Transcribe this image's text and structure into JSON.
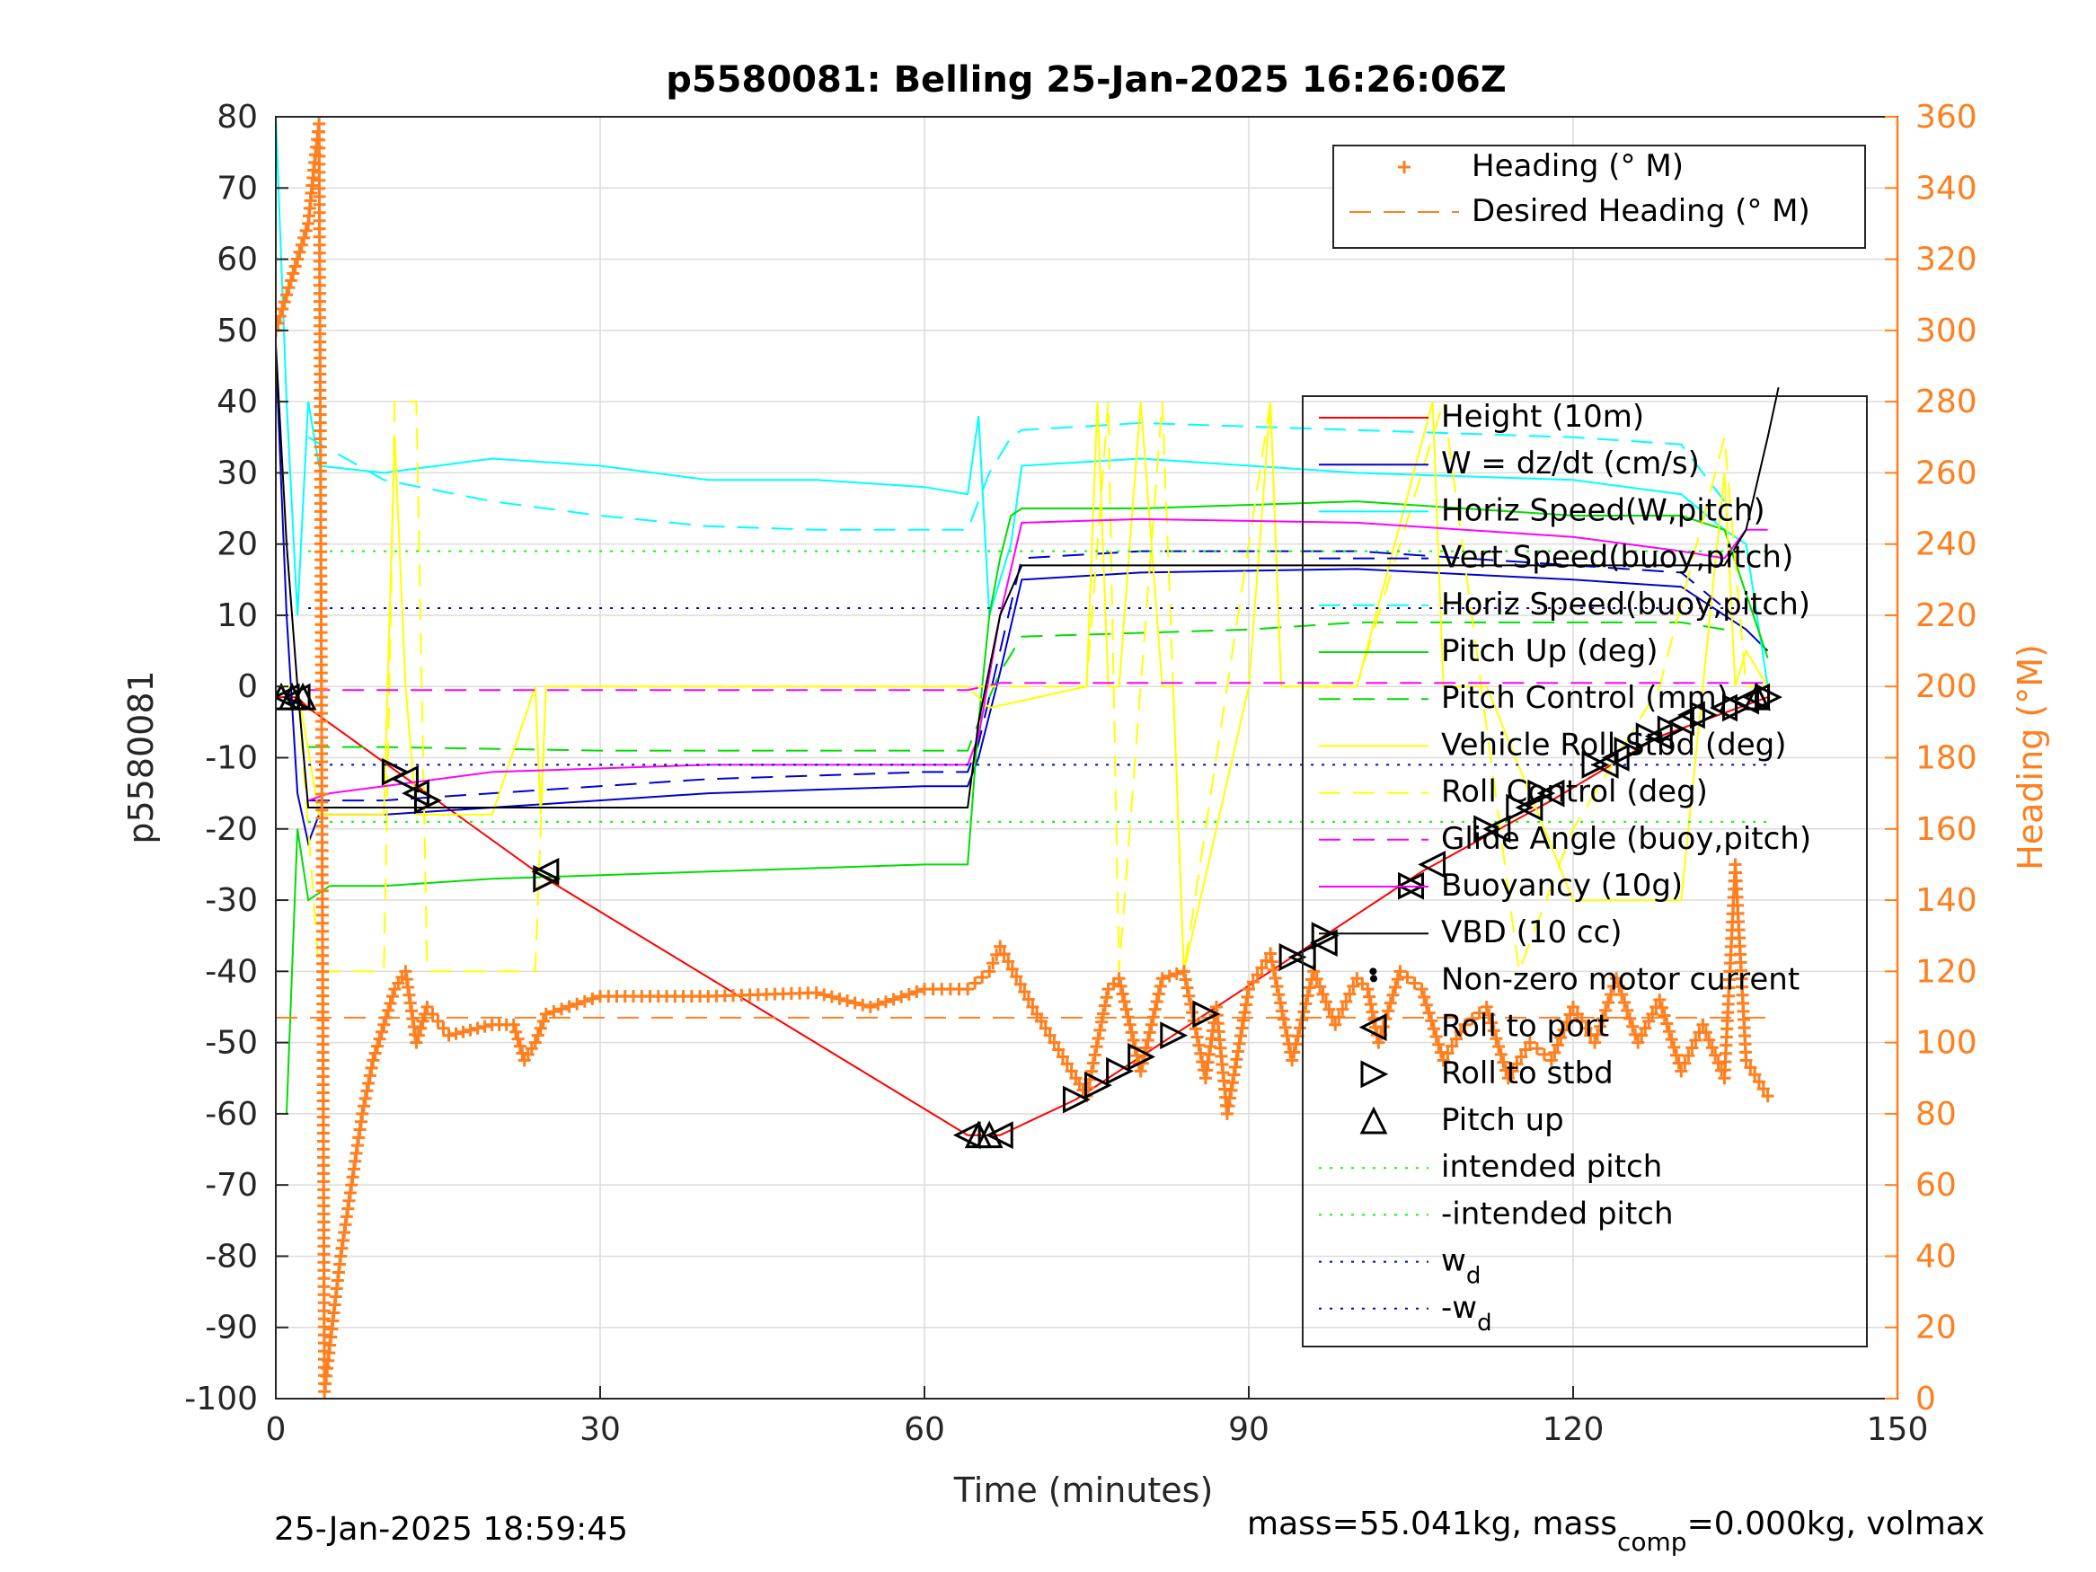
{
  "chart_data": {
    "type": "line",
    "title": "p5580081: Belling 25-Jan-2025 16:26:06Z",
    "xlabel": "Time (minutes)",
    "ylabel_left": "p5580081",
    "ylabel_right": "Heading (°M)",
    "xlim": [
      0,
      150
    ],
    "ylim_left": [
      -100,
      80
    ],
    "ylim_right": [
      0,
      360
    ],
    "x_ticks": [
      0,
      30,
      60,
      90,
      120,
      150
    ],
    "y_ticks_left": [
      -100,
      -90,
      -80,
      -70,
      -60,
      -50,
      -40,
      -30,
      -20,
      -10,
      0,
      10,
      20,
      30,
      40,
      50,
      60,
      70,
      80
    ],
    "y_ticks_right": [
      0,
      20,
      40,
      60,
      80,
      100,
      120,
      140,
      160,
      180,
      200,
      220,
      240,
      260,
      280,
      300,
      320,
      340,
      360
    ],
    "grid": true,
    "colors": {
      "heading": "#ff7f1f",
      "right_axis": "#ff7f1f"
    },
    "heading_legend": [
      {
        "name": "Heading (° M)",
        "style": "plus",
        "color": "#ff7f1f"
      },
      {
        "name": "Desired Heading (° M)",
        "style": "dash",
        "color": "#ff7f1f"
      }
    ],
    "main_legend": [
      {
        "name": "Height (10m)",
        "style": "solid",
        "color": "#ff0000"
      },
      {
        "name": "W = dz/dt (cm/s)",
        "style": "solid",
        "color": "#0000cc"
      },
      {
        "name": "Horiz Speed(W,pitch)",
        "style": "solid",
        "color": "#00ffff"
      },
      {
        "name": "Vert Speed(buoy,pitch)",
        "style": "dash",
        "color": "#0000cc"
      },
      {
        "name": "Horiz Speed(buoy,pitch)",
        "style": "dash",
        "color": "#00ffff"
      },
      {
        "name": "Pitch Up (deg)",
        "style": "solid",
        "color": "#00dd00"
      },
      {
        "name": "Pitch Control (mm)",
        "style": "dash",
        "color": "#00dd00"
      },
      {
        "name": "Vehicle Roll Stbd (deg)",
        "style": "solid",
        "color": "#ffff00"
      },
      {
        "name": "Roll Control (deg)",
        "style": "dash",
        "color": "#ffff00"
      },
      {
        "name": "Glide Angle (buoy,pitch)",
        "style": "dash",
        "color": "#ff00ff"
      },
      {
        "name": "Buoyancy (10g)",
        "style": "solid",
        "color": "#ff00ff"
      },
      {
        "name": "VBD (10 cc)",
        "style": "solid",
        "color": "#000000"
      },
      {
        "name": "Non-zero motor current",
        "style": "dot",
        "color": "#000000"
      },
      {
        "name": "Roll to port",
        "style": "tri-left",
        "color": "#000000"
      },
      {
        "name": "Roll to stbd",
        "style": "tri-right",
        "color": "#000000"
      },
      {
        "name": "Pitch up",
        "style": "tri-up",
        "color": "#000000"
      },
      {
        "name": "intended pitch",
        "style": "dotted",
        "color": "#00ff00"
      },
      {
        "name": "-intended pitch",
        "style": "dotted",
        "color": "#00ff00"
      },
      {
        "name": "w",
        "sub": "d",
        "style": "dotted",
        "color": "#0000cc"
      },
      {
        "name": "-w",
        "sub": "d",
        "style": "dotted",
        "color": "#0000cc"
      }
    ],
    "series": [
      {
        "name": "Height (10m)",
        "axis": "left",
        "x": [
          0,
          2,
          3,
          25,
          64,
          67,
          74,
          86,
          97,
          106,
          118,
          128,
          138
        ],
        "y": [
          -1.5,
          -1.5,
          -3,
          -27,
          -63,
          -63,
          -58,
          -46,
          -35,
          -26,
          -16,
          -7,
          -1.5
        ]
      },
      {
        "name": "W = dz/dt (cm/s)",
        "axis": "left",
        "x": [
          0,
          1,
          2,
          3,
          4,
          10,
          20,
          40,
          60,
          64,
          65,
          67,
          69,
          80,
          100,
          120,
          130,
          134,
          136,
          138
        ],
        "y": [
          47,
          10,
          -15,
          -22,
          -18,
          -18,
          -17,
          -15,
          -14,
          -14,
          -10,
          2,
          15,
          16,
          16.5,
          15,
          14,
          10,
          8,
          5
        ]
      },
      {
        "name": "Horiz Speed(W,pitch)",
        "axis": "left",
        "x": [
          0,
          1,
          2,
          3,
          4,
          10,
          20,
          30,
          40,
          50,
          60,
          64,
          65,
          66,
          67,
          68,
          69,
          80,
          100,
          120,
          130,
          134,
          136,
          138
        ],
        "y": [
          80,
          40,
          10,
          40,
          31,
          30,
          32,
          31,
          29,
          29,
          28,
          27,
          38,
          10,
          15,
          20,
          31,
          32,
          30,
          29,
          27,
          22,
          20,
          0
        ]
      },
      {
        "name": "Vert Speed(buoy,pitch)",
        "axis": "left",
        "x": [
          3,
          10,
          20,
          40,
          60,
          64,
          65,
          67,
          69,
          80,
          100,
          120,
          130,
          134
        ],
        "y": [
          -16,
          -16,
          -15,
          -13,
          -12,
          -12,
          -8,
          5,
          18,
          19,
          19,
          17,
          16,
          11
        ]
      },
      {
        "name": "Horiz Speed(buoy,pitch)",
        "axis": "left",
        "x": [
          3,
          10,
          20,
          30,
          40,
          50,
          60,
          64,
          66,
          68,
          69,
          80,
          100,
          120,
          130,
          134
        ],
        "y": [
          35,
          29,
          26,
          24,
          22.5,
          22,
          22,
          22,
          30,
          35,
          36,
          37,
          36,
          35,
          34,
          26
        ]
      },
      {
        "name": "Pitch Up (deg)",
        "axis": "left",
        "x": [
          1,
          2,
          3,
          5,
          10,
          20,
          40,
          60,
          64,
          65,
          66,
          67,
          68,
          69,
          80,
          100,
          120,
          130,
          134,
          138
        ],
        "y": [
          -60,
          -20,
          -30,
          -28,
          -28,
          -27,
          -26,
          -25,
          -25,
          -5,
          10,
          18,
          24,
          25,
          25,
          26,
          24,
          24,
          22,
          4
        ]
      },
      {
        "name": "Pitch Control (mm)",
        "axis": "left",
        "x": [
          3,
          10,
          30,
          50,
          64,
          65,
          67,
          69,
          90,
          100,
          110,
          120,
          130,
          134
        ],
        "y": [
          -8.5,
          -8.5,
          -9,
          -9,
          -9,
          -5,
          2,
          7,
          8,
          9,
          9,
          9,
          9,
          8
        ]
      },
      {
        "name": "Vehicle Roll Stbd (deg)",
        "axis": "left",
        "x": [
          0,
          2,
          4,
          10,
          11,
          12,
          13,
          20,
          24,
          24.5,
          25,
          30,
          60,
          64,
          66,
          75,
          76,
          77,
          78,
          80,
          82,
          83,
          84,
          90,
          92,
          93,
          94,
          100,
          107,
          108,
          109,
          112,
          120,
          130,
          134,
          135,
          136,
          138
        ],
        "y": [
          0,
          0,
          -18,
          -18,
          35,
          0,
          -18,
          -18,
          0,
          -18,
          0,
          0,
          0,
          0,
          -3,
          0,
          40,
          0,
          0,
          40,
          0,
          0,
          -40,
          0,
          40,
          0,
          0,
          0,
          40,
          0,
          0,
          0,
          -30,
          -30,
          30,
          0,
          5,
          0
        ]
      },
      {
        "name": "Roll Control (deg)",
        "axis": "left",
        "x": [
          0,
          2,
          4,
          10,
          11,
          13,
          14,
          24,
          25,
          64,
          66,
          70,
          75,
          77,
          78,
          82,
          83,
          84,
          92,
          93,
          94,
          100,
          108,
          115,
          120,
          128,
          134,
          136,
          138
        ],
        "y": [
          0,
          0,
          -40,
          -40,
          40,
          40,
          -40,
          -40,
          0,
          0,
          0,
          0,
          0,
          40,
          -40,
          40,
          0,
          -40,
          40,
          0,
          0,
          0,
          40,
          -40,
          -20,
          0,
          35,
          0,
          0
        ]
      },
      {
        "name": "Glide Angle (buoy,pitch)",
        "axis": "left",
        "x": [
          3,
          30,
          60,
          64,
          67,
          100,
          138
        ],
        "y": [
          -0.5,
          -0.5,
          -0.5,
          -0.5,
          0.5,
          0.5,
          0.5
        ]
      },
      {
        "name": "Buoyancy (10g)",
        "axis": "left",
        "x": [
          3,
          5,
          10,
          20,
          40,
          60,
          64,
          65,
          67,
          69,
          80,
          100,
          120,
          130,
          134,
          136,
          138
        ],
        "y": [
          -16,
          -15,
          -14,
          -12,
          -11,
          -11,
          -11,
          -7,
          10,
          23,
          23.5,
          23,
          21,
          19,
          18,
          22,
          22
        ]
      },
      {
        "name": "VBD (10 cc)",
        "axis": "left",
        "x": [
          0,
          1,
          2,
          3,
          10,
          30,
          60,
          64,
          65,
          67,
          69,
          90,
          120,
          130,
          134,
          136,
          138,
          139
        ],
        "y": [
          48,
          20,
          0,
          -17,
          -17,
          -17,
          -17,
          -17,
          -5,
          10,
          17,
          17,
          17,
          17,
          17,
          22,
          35,
          42
        ]
      },
      {
        "name": "Heading (° M)",
        "axis": "right",
        "x": [
          0,
          1,
          2,
          3,
          3.5,
          4,
          4.5,
          5,
          6,
          7,
          8,
          9,
          10,
          11,
          12,
          13,
          14,
          16,
          20,
          22,
          23,
          24,
          25,
          30,
          40,
          50,
          55,
          60,
          64,
          66,
          67,
          70,
          74,
          75,
          77,
          78,
          80,
          82,
          84,
          86,
          87,
          88,
          90,
          92,
          94,
          96,
          98,
          100,
          101,
          102,
          104,
          106,
          108,
          110,
          112,
          114,
          116,
          118,
          120,
          122,
          124,
          126,
          128,
          130,
          132,
          134,
          135,
          136,
          138
        ],
        "y": [
          300,
          310,
          320,
          330,
          345,
          358,
          2,
          15,
          40,
          60,
          80,
          95,
          105,
          115,
          120,
          100,
          110,
          102,
          105,
          105,
          95,
          100,
          108,
          113,
          113,
          114,
          110,
          115,
          115,
          120,
          127,
          110,
          90,
          85,
          115,
          118,
          92,
          118,
          120,
          90,
          110,
          80,
          115,
          125,
          95,
          120,
          105,
          118,
          115,
          100,
          120,
          115,
          95,
          105,
          110,
          90,
          100,
          95,
          110,
          100,
          118,
          100,
          112,
          92,
          105,
          90,
          150,
          95,
          85
        ]
      },
      {
        "name": "Desired Heading (° M)",
        "axis": "right",
        "x": [
          0,
          138
        ],
        "y": [
          107,
          107
        ]
      },
      {
        "name": "intended pitch",
        "axis": "left",
        "x": [
          3,
          138
        ],
        "y": [
          19,
          19
        ]
      },
      {
        "name": "-intended pitch",
        "axis": "left",
        "x": [
          3,
          138
        ],
        "y": [
          -19,
          -19
        ]
      },
      {
        "name": "w_d",
        "axis": "left",
        "x": [
          3,
          138
        ],
        "y": [
          11,
          11
        ]
      },
      {
        "name": "-w_d",
        "axis": "left",
        "x": [
          3,
          138
        ],
        "y": [
          -11,
          -11
        ]
      },
      {
        "name": "Roll to port",
        "axis": "left",
        "x": [
          1,
          2,
          12,
          13,
          25,
          64,
          67,
          95,
          97,
          105,
          107,
          113,
          116,
          118,
          123,
          124,
          128,
          130,
          131,
          134,
          136,
          137
        ],
        "y": [
          -1.5,
          -1.5,
          -13,
          -15,
          -26,
          -63,
          -63,
          -38,
          -36,
          -28,
          -25,
          -20,
          -17,
          -15,
          -11,
          -10,
          -7,
          -5,
          -4,
          -3,
          -2,
          -1.5
        ]
      },
      {
        "name": "Roll to stbd",
        "axis": "left",
        "x": [
          11,
          14,
          25,
          74,
          76,
          78,
          80,
          83,
          86,
          94,
          97,
          105,
          112,
          115,
          117,
          122,
          125,
          127,
          129,
          132,
          135,
          138
        ],
        "y": [
          -12,
          -16,
          -27,
          -58,
          -56,
          -54,
          -52,
          -49,
          -46,
          -38,
          -35,
          -28,
          -20,
          -17,
          -15,
          -11,
          -9,
          -7,
          -6,
          -4,
          -3,
          -1.5
        ]
      },
      {
        "name": "Pitch up",
        "axis": "left",
        "x": [
          0.5,
          1.5,
          2.5,
          65,
          66,
          137
        ],
        "y": [
          -1.5,
          -1.5,
          -1.5,
          -63,
          -63,
          -1.5
        ]
      },
      {
        "name": "Non-zero motor current",
        "axis": "left",
        "x": [
          101.5
        ],
        "y": [
          -40
        ]
      }
    ]
  },
  "footer": {
    "timestamp": "25-Jan-2025 18:59:45",
    "mass_text": "mass=55.041kg, mass",
    "mass_sub": "comp",
    "mass_rest": "=0.000kg, volmax"
  }
}
